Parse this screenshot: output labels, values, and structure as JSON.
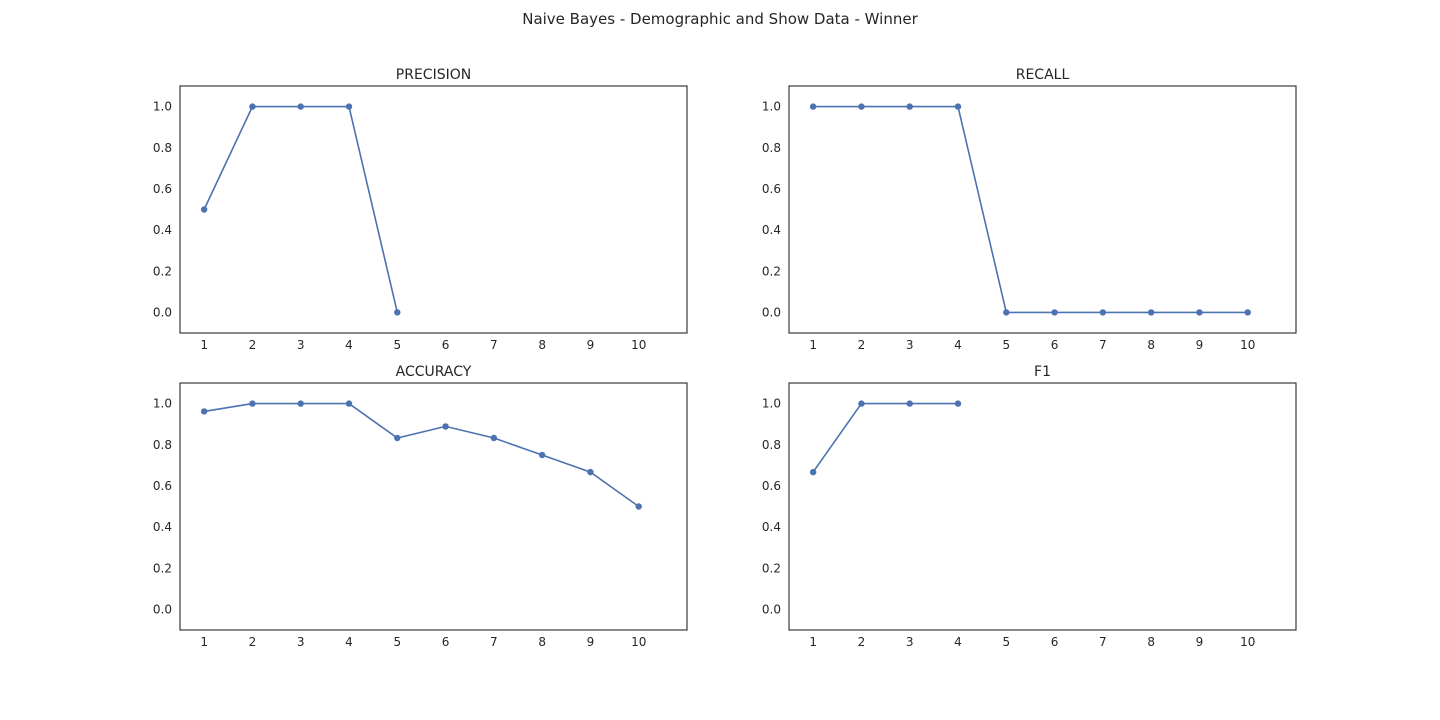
{
  "figure": {
    "title": "Naive Bayes - Demographic and Show Data - Winner"
  },
  "colors": {
    "series": "#4c72b0",
    "axes": "#262626",
    "background": "#ffffff"
  },
  "chart_data": [
    {
      "type": "line",
      "title": "PRECISION",
      "xlabel": "",
      "ylabel": "",
      "x": [
        1,
        2,
        3,
        4,
        5
      ],
      "values": [
        0.5,
        1.0,
        1.0,
        1.0,
        0.0
      ],
      "xticks": [
        1,
        2,
        3,
        4,
        5,
        6,
        7,
        8,
        9,
        10
      ],
      "yticks": [
        "0.0",
        "0.2",
        "0.4",
        "0.6",
        "0.8",
        "1.0"
      ],
      "xlim": [
        0.5,
        11.0
      ],
      "ylim": [
        -0.1,
        1.1
      ],
      "grid": false
    },
    {
      "type": "line",
      "title": "RECALL",
      "xlabel": "",
      "ylabel": "",
      "x": [
        1,
        2,
        3,
        4,
        5,
        6,
        7,
        8,
        9,
        10
      ],
      "values": [
        1.0,
        1.0,
        1.0,
        1.0,
        0.0,
        0.0,
        0.0,
        0.0,
        0.0,
        0.0
      ],
      "xticks": [
        1,
        2,
        3,
        4,
        5,
        6,
        7,
        8,
        9,
        10
      ],
      "yticks": [
        "0.0",
        "0.2",
        "0.4",
        "0.6",
        "0.8",
        "1.0"
      ],
      "xlim": [
        0.5,
        11.0
      ],
      "ylim": [
        -0.1,
        1.1
      ],
      "grid": false
    },
    {
      "type": "line",
      "title": "ACCURACY",
      "xlabel": "",
      "ylabel": "",
      "x": [
        1,
        2,
        3,
        4,
        5,
        6,
        7,
        8,
        9,
        10
      ],
      "values": [
        0.962,
        1.0,
        1.0,
        1.0,
        0.833,
        0.889,
        0.833,
        0.75,
        0.667,
        0.5
      ],
      "xticks": [
        1,
        2,
        3,
        4,
        5,
        6,
        7,
        8,
        9,
        10
      ],
      "yticks": [
        "0.0",
        "0.2",
        "0.4",
        "0.6",
        "0.8",
        "1.0"
      ],
      "xlim": [
        0.5,
        11.0
      ],
      "ylim": [
        -0.1,
        1.1
      ],
      "grid": false
    },
    {
      "type": "line",
      "title": "F1",
      "xlabel": "",
      "ylabel": "",
      "x": [
        1,
        2,
        3,
        4
      ],
      "values": [
        0.667,
        1.0,
        1.0,
        1.0
      ],
      "xticks": [
        1,
        2,
        3,
        4,
        5,
        6,
        7,
        8,
        9,
        10
      ],
      "yticks": [
        "0.0",
        "0.2",
        "0.4",
        "0.6",
        "0.8",
        "1.0"
      ],
      "xlim": [
        0.5,
        11.0
      ],
      "ylim": [
        -0.1,
        1.1
      ],
      "grid": false
    }
  ]
}
